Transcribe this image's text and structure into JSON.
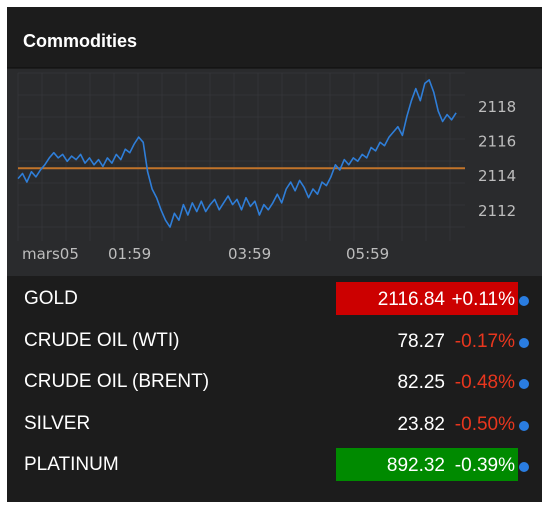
{
  "widget": {
    "title": "Commodities"
  },
  "chart_data": {
    "type": "line",
    "title": "",
    "xlabel": "",
    "ylabel": "",
    "x_tick_labels": [
      "mars05",
      "01:59",
      "03:59",
      "05:59"
    ],
    "y_tick_labels": [
      "2118",
      "2116",
      "2114",
      "2112"
    ],
    "y_ticks": [
      2118,
      2116,
      2114,
      2112
    ],
    "ylim": [
      2110.2,
      2119.9
    ],
    "xlim": [
      0,
      100
    ],
    "reference_line": 2114.4,
    "series": [
      {
        "values": [
          [
            0,
            2113.8
          ],
          [
            1,
            2114.1
          ],
          [
            2,
            2113.6
          ],
          [
            3,
            2114.2
          ],
          [
            4,
            2113.9
          ],
          [
            5,
            2114.3
          ],
          [
            6,
            2114.6
          ],
          [
            7,
            2115.0
          ],
          [
            8,
            2115.3
          ],
          [
            9,
            2115.0
          ],
          [
            10,
            2115.2
          ],
          [
            11,
            2114.8
          ],
          [
            12,
            2115.1
          ],
          [
            13,
            2114.9
          ],
          [
            14,
            2115.2
          ],
          [
            15,
            2114.7
          ],
          [
            16,
            2115.0
          ],
          [
            17,
            2114.6
          ],
          [
            18,
            2114.9
          ],
          [
            19,
            2114.5
          ],
          [
            20,
            2115.0
          ],
          [
            21,
            2114.7
          ],
          [
            22,
            2115.2
          ],
          [
            23,
            2114.9
          ],
          [
            24,
            2115.5
          ],
          [
            25,
            2115.3
          ],
          [
            26,
            2115.8
          ],
          [
            27,
            2116.2
          ],
          [
            28,
            2115.9
          ],
          [
            29,
            2114.2
          ],
          [
            30,
            2113.2
          ],
          [
            31,
            2112.7
          ],
          [
            32,
            2112.0
          ],
          [
            33,
            2111.4
          ],
          [
            34,
            2111.0
          ],
          [
            35,
            2111.8
          ],
          [
            36,
            2111.4
          ],
          [
            37,
            2112.3
          ],
          [
            38,
            2111.7
          ],
          [
            39,
            2112.4
          ],
          [
            40,
            2111.9
          ],
          [
            41,
            2112.5
          ],
          [
            42,
            2111.9
          ],
          [
            43,
            2112.3
          ],
          [
            44,
            2112.6
          ],
          [
            45,
            2112.0
          ],
          [
            46,
            2112.4
          ],
          [
            47,
            2112.8
          ],
          [
            48,
            2112.3
          ],
          [
            49,
            2112.6
          ],
          [
            50,
            2112.0
          ],
          [
            51,
            2112.7
          ],
          [
            52,
            2112.2
          ],
          [
            53,
            2112.5
          ],
          [
            54,
            2111.7
          ],
          [
            55,
            2112.3
          ],
          [
            56,
            2112.0
          ],
          [
            57,
            2112.4
          ],
          [
            58,
            2112.9
          ],
          [
            59,
            2112.4
          ],
          [
            60,
            2113.2
          ],
          [
            61,
            2113.6
          ],
          [
            62,
            2113.1
          ],
          [
            63,
            2113.7
          ],
          [
            64,
            2113.3
          ],
          [
            65,
            2112.7
          ],
          [
            66,
            2113.2
          ],
          [
            67,
            2112.9
          ],
          [
            68,
            2113.6
          ],
          [
            69,
            2113.4
          ],
          [
            70,
            2113.9
          ],
          [
            71,
            2114.6
          ],
          [
            72,
            2114.3
          ],
          [
            73,
            2114.9
          ],
          [
            74,
            2114.6
          ],
          [
            75,
            2115.0
          ],
          [
            76,
            2114.8
          ],
          [
            77,
            2115.2
          ],
          [
            78,
            2115.0
          ],
          [
            79,
            2115.6
          ],
          [
            80,
            2115.4
          ],
          [
            81,
            2115.9
          ],
          [
            82,
            2115.7
          ],
          [
            83,
            2116.2
          ],
          [
            84,
            2116.5
          ],
          [
            85,
            2116.8
          ],
          [
            86,
            2116.3
          ],
          [
            87,
            2117.4
          ],
          [
            88,
            2118.3
          ],
          [
            89,
            2119.0
          ],
          [
            90,
            2118.3
          ],
          [
            91,
            2119.3
          ],
          [
            92,
            2119.5
          ],
          [
            93,
            2118.8
          ],
          [
            94,
            2117.7
          ],
          [
            95,
            2117.1
          ],
          [
            96,
            2117.5
          ],
          [
            97,
            2117.2
          ],
          [
            98,
            2117.6
          ]
        ]
      }
    ],
    "colors": {
      "line": "#2f7ed8",
      "reference": "#c2742a",
      "grid": "#3a3b3e",
      "tick_text": "#bdbdbd"
    },
    "grid": true
  },
  "rows": [
    {
      "name": "GOLD",
      "price": "2116.84",
      "change": "+0.11%",
      "highlight": "#cc0000",
      "change_color": "#ffffff"
    },
    {
      "name": "CRUDE OIL (WTI)",
      "price": "78.27",
      "change": "-0.17%",
      "highlight": "",
      "change_color": "#e8361e"
    },
    {
      "name": "CRUDE OIL (BRENT)",
      "price": "82.25",
      "change": "-0.48%",
      "highlight": "",
      "change_color": "#e8361e"
    },
    {
      "name": "SILVER",
      "price": "23.82",
      "change": "-0.50%",
      "highlight": "",
      "change_color": "#e8361e"
    },
    {
      "name": "PLATINUM",
      "price": "892.32",
      "change": "-0.39%",
      "highlight": "#008a00",
      "change_color": "#ffffff"
    }
  ]
}
